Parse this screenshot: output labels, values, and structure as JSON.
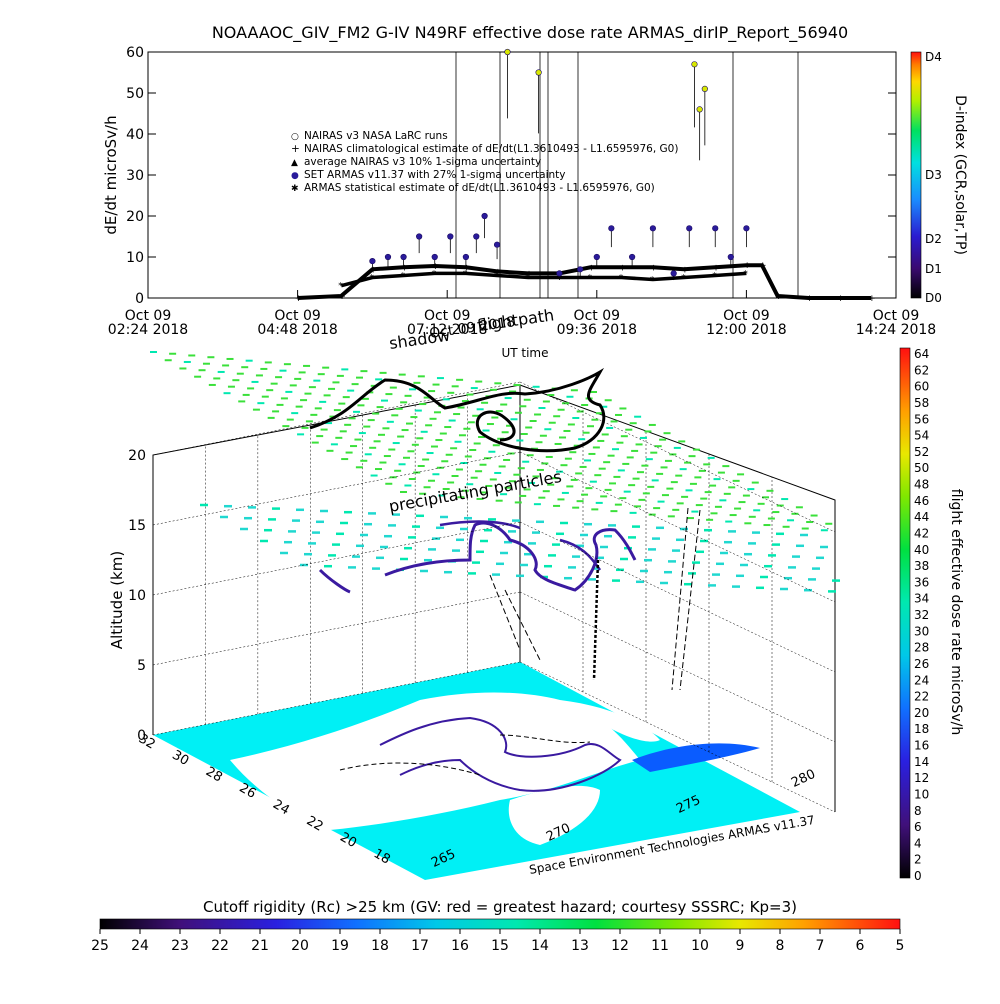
{
  "title": "NOAAAOC_GIV_FM2 G-IV    N49RF   effective dose rate ARMAS_dirIP_Report_56940",
  "top_chart": {
    "ylabel": "dE/dt microSv/h",
    "xlabel": "UT time",
    "y_ticks": [
      "0",
      "10",
      "20",
      "30",
      "40",
      "50",
      "60"
    ],
    "x_ticks": [
      {
        "day": "Oct 09",
        "time": "02:24 2018"
      },
      {
        "day": "Oct 09",
        "time": "04:48 2018"
      },
      {
        "day": "Oct 09",
        "time": "07:12 2018"
      },
      {
        "day": "Oct 09",
        "time": "09:36 2018"
      },
      {
        "day": "Oct 09",
        "time": "12:00 2018"
      },
      {
        "day": "Oct 09",
        "time": "14:24 2018"
      }
    ],
    "legend": [
      {
        "symbol": "○",
        "label": "NAIRAS v3 NASA LaRC runs"
      },
      {
        "symbol": "+",
        "label": "NAIRAS climatological estimate of dE/dt(L1.3610493 - L1.6595976, G0)"
      },
      {
        "symbol": "▲",
        "label": "average NAIRAS v3 10% 1-sigma uncertainty"
      },
      {
        "symbol": "●",
        "label": "SET ARMAS v11.37 with 27% 1-sigma uncertainty"
      },
      {
        "symbol": "✱",
        "label": "ARMAS statistical estimate of dE/dt(L1.3610493 - L1.6595976, G0)"
      }
    ],
    "colorbar_label": "D-index (GCR,solar,TP)",
    "colorbar_ticks": [
      "D0",
      "D1",
      "D2",
      "D3",
      "D4"
    ]
  },
  "bottom_chart": {
    "zlabel": "Altitude (km)",
    "z_ticks": [
      "0",
      "5",
      "10",
      "15",
      "20"
    ],
    "lat_ticks": [
      "32",
      "30",
      "28",
      "26",
      "24",
      "22",
      "20",
      "18"
    ],
    "lon_ticks": [
      "265",
      "270",
      "275",
      "280"
    ],
    "annotations": {
      "shadow": "shadow",
      "flightpath": "flightpath",
      "date": "Oct 09 2018",
      "precip": "precipitating particles",
      "credit": "Space Environment Technologies ARMAS v11.37"
    },
    "colorbar_label": "flight effective dose rate microSv/h",
    "colorbar_ticks": [
      "0",
      "2",
      "4",
      "6",
      "8",
      "10",
      "12",
      "14",
      "16",
      "18",
      "20",
      "22",
      "24",
      "26",
      "28",
      "30",
      "32",
      "34",
      "36",
      "38",
      "40",
      "42",
      "44",
      "46",
      "48",
      "50",
      "52",
      "54",
      "56",
      "58",
      "60",
      "62",
      "64"
    ]
  },
  "cutoff": {
    "label": "Cutoff rigidity (Rc) >25 km (GV: red = greatest hazard; courtesy SSSRC; Kp=3)",
    "ticks": [
      "25",
      "24",
      "23",
      "22",
      "21",
      "20",
      "19",
      "18",
      "17",
      "16",
      "15",
      "14",
      "13",
      "12",
      "11",
      "10",
      "9",
      "8",
      "7",
      "6",
      "5"
    ]
  },
  "chart_data": {
    "type": "scatter",
    "title": "NOAAAOC_GIV_FM2 G-IV    N49RF   effective dose rate ARMAS_dirIP_Report_56940",
    "xlabel": "UT time",
    "ylabel": "dE/dt microSv/h",
    "xlim": [
      "2018-10-09 02:24",
      "2018-10-09 14:24"
    ],
    "ylim": [
      0,
      60
    ],
    "series": [
      {
        "name": "NAIRAS climatological estimate of dE/dt(L1.3610493 - L1.6595976, G0)",
        "x": [
          "04:48",
          "05:30",
          "06:00",
          "06:30",
          "07:00",
          "07:30",
          "08:00",
          "08:30",
          "09:00",
          "09:30",
          "10:00",
          "10:30",
          "11:00",
          "11:30",
          "12:00",
          "12:15",
          "12:30",
          "13:00",
          "13:30",
          "14:00"
        ],
        "y": [
          0,
          0.5,
          7,
          7.5,
          7.8,
          7.5,
          6.5,
          6,
          6,
          7.5,
          7.5,
          7.5,
          7,
          7.5,
          8,
          8,
          0.5,
          0,
          0,
          0
        ]
      },
      {
        "name": "ARMAS statistical estimate of dE/dt(L1.3610493 - L1.6595976, G0)",
        "x": [
          "05:30",
          "06:00",
          "06:30",
          "07:00",
          "07:30",
          "08:00",
          "08:30",
          "09:00",
          "09:30",
          "10:00",
          "10:30",
          "11:00",
          "11:30",
          "12:00"
        ],
        "y": [
          3,
          5,
          5.5,
          6,
          6,
          5.5,
          5,
          5,
          5,
          5,
          4.5,
          5,
          5.5,
          6
        ]
      },
      {
        "name": "SET ARMAS v11.37 with 27% 1-sigma uncertainty",
        "x": [
          "06:00",
          "06:15",
          "06:30",
          "06:45",
          "07:00",
          "07:15",
          "07:30",
          "07:40",
          "07:48",
          "08:00",
          "08:10",
          "08:40",
          "09:00",
          "09:20",
          "09:36",
          "09:50",
          "10:10",
          "10:30",
          "10:50",
          "11:05",
          "11:10",
          "11:15",
          "11:20",
          "11:30",
          "11:45",
          "12:00"
        ],
        "y": [
          9,
          10,
          10,
          15,
          10,
          15,
          10,
          15,
          20,
          13,
          60,
          55,
          6,
          7,
          10,
          17,
          10,
          17,
          6,
          17,
          57,
          46,
          51,
          17,
          10,
          17
        ]
      }
    ],
    "colorbar": {
      "label": "D-index (GCR,solar,TP)",
      "categories": [
        "D0",
        "D1",
        "D2",
        "D3",
        "D4"
      ]
    }
  },
  "colors": {
    "cyan_land": "#00f0f5",
    "grid": "#000000",
    "armas": "#2a1b9b"
  }
}
